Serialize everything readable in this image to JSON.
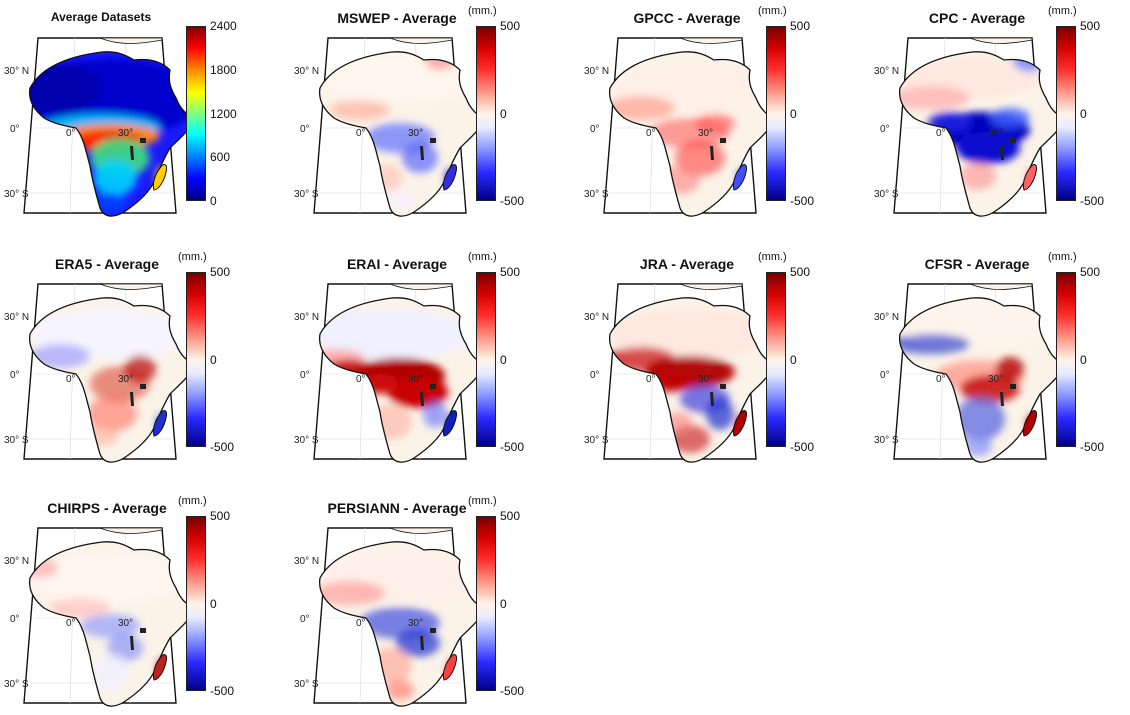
{
  "colors": {
    "land_neutral": "#fbf3e8",
    "red_strong": "#c40000",
    "blue_strong": "#1010c0",
    "border": "#111111"
  },
  "map_labels": {
    "lat_north": "30° N",
    "lat_equator": "0°",
    "lat_south": "30° S",
    "lon_zero": "0°",
    "lon_30": "30°"
  },
  "panels": [
    {
      "id": "avg",
      "title": "Average Datasets",
      "unit": "",
      "colormap": "jet",
      "ticks": [
        "2400",
        "1800",
        "1200",
        "600",
        "0"
      ],
      "pattern": "jet"
    },
    {
      "id": "mswep",
      "title": "MSWEP - Average",
      "unit": "(mm.)",
      "colormap": "red-white-blue",
      "ticks": [
        "500",
        "0",
        "-500"
      ],
      "pattern": "mswep"
    },
    {
      "id": "gpcc",
      "title": "GPCC - Average",
      "unit": "(mm.)",
      "colormap": "red-white-blue",
      "ticks": [
        "500",
        "0",
        "-500"
      ],
      "pattern": "gpcc"
    },
    {
      "id": "cpc",
      "title": "CPC - Average",
      "unit": "(mm.)",
      "colormap": "red-white-blue",
      "ticks": [
        "500",
        "0",
        "-500"
      ],
      "pattern": "cpc"
    },
    {
      "id": "era5",
      "title": "ERA5 - Average",
      "unit": "(mm.)",
      "colormap": "red-white-blue",
      "ticks": [
        "500",
        "0",
        "-500"
      ],
      "pattern": "era5"
    },
    {
      "id": "erai",
      "title": "ERAI - Average",
      "unit": "(mm.)",
      "colormap": "red-white-blue",
      "ticks": [
        "500",
        "0",
        "-500"
      ],
      "pattern": "erai"
    },
    {
      "id": "jra",
      "title": "JRA - Average",
      "unit": "(mm.)",
      "colormap": "red-white-blue",
      "ticks": [
        "500",
        "0",
        "-500"
      ],
      "pattern": "jra"
    },
    {
      "id": "cfsr",
      "title": "CFSR - Average",
      "unit": "(mm.)",
      "colormap": "red-white-blue",
      "ticks": [
        "500",
        "0",
        "-500"
      ],
      "pattern": "cfsr"
    },
    {
      "id": "chirps",
      "title": "CHIRPS - Average",
      "unit": "(mm.)",
      "colormap": "red-white-blue",
      "ticks": [
        "500",
        "0",
        "-500"
      ],
      "pattern": "chirps"
    },
    {
      "id": "persiann",
      "title": "PERSIANN - Average",
      "unit": "(mm.)",
      "colormap": "red-white-blue",
      "ticks": [
        "500",
        "0",
        "-500"
      ],
      "pattern": "persiann"
    }
  ]
}
